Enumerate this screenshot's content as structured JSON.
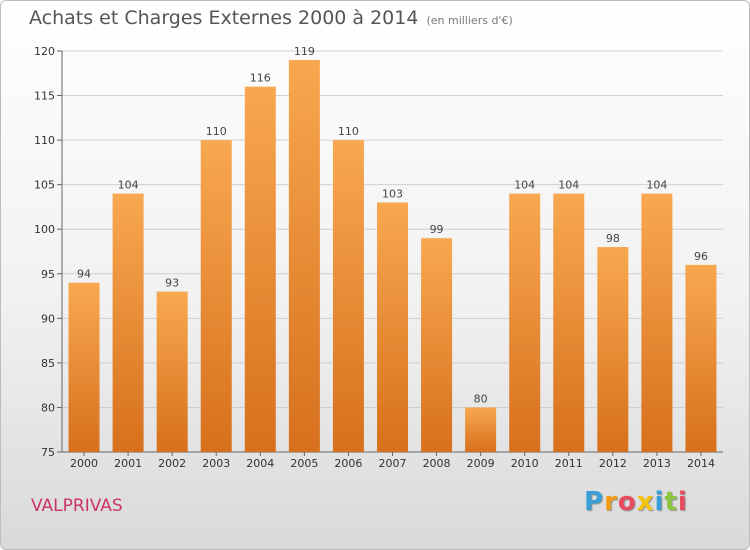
{
  "header": {
    "title": "Achats et Charges Externes 2000 à 2014",
    "subtitle": "(en milliers d'€)"
  },
  "footer": {
    "commune": "VALPRIVAS",
    "logo_letters": [
      "P",
      "r",
      "o",
      "x",
      "i",
      "t",
      "i"
    ],
    "logo_colors": [
      "#3aa0d8",
      "#f39c12",
      "#e84a5f",
      "#f1c40f",
      "#3aa0d8",
      "#8cc63f",
      "#e84a5f"
    ]
  },
  "colors": {
    "bar_light": "#f8a850",
    "bar_dark": "#d7701c",
    "axis": "#666666",
    "grid": "#d0d0d0",
    "commune": "#cc3366"
  },
  "chart_data": {
    "type": "bar",
    "title": "Achats et Charges Externes 2000 à 2014",
    "subtitle": "(en milliers d'€)",
    "categories": [
      "2000",
      "2001",
      "2002",
      "2003",
      "2004",
      "2005",
      "2006",
      "2007",
      "2008",
      "2009",
      "2010",
      "2011",
      "2012",
      "2013",
      "2014"
    ],
    "values": [
      94,
      104,
      93,
      110,
      116,
      119,
      110,
      103,
      99,
      80,
      104,
      104,
      98,
      104,
      96
    ],
    "ylim": [
      75,
      120
    ],
    "yticks": [
      75,
      80,
      85,
      90,
      95,
      100,
      105,
      110,
      115,
      120
    ],
    "grid": true,
    "data_labels": true
  }
}
